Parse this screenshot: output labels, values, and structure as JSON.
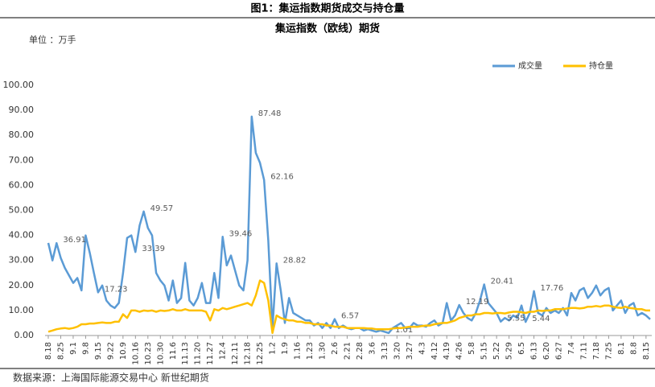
{
  "chart_data": {
    "type": "line",
    "title": "图1：集运指数期货成交与持仓量",
    "subtitle": "集运指数（欧线）期货",
    "unit": "单位 ：万手",
    "source": "数据来源：上海国际能源交易中心 新世纪期货",
    "legend": "top-right",
    "ylim": [
      0,
      100
    ],
    "yticks": [
      {
        "value": 0,
        "label": "0.00"
      },
      {
        "value": 10,
        "label": "10.00"
      },
      {
        "value": 20,
        "label": "20.00"
      },
      {
        "value": 30,
        "label": "30.00"
      },
      {
        "value": 40,
        "label": "40.00"
      },
      {
        "value": 50,
        "label": "50.00"
      },
      {
        "value": 60,
        "label": "60.00"
      },
      {
        "value": 70,
        "label": "70.00"
      },
      {
        "value": 80,
        "label": "80.00"
      },
      {
        "value": 90,
        "label": "90.00"
      },
      {
        "value": 100,
        "label": "100.00"
      }
    ],
    "categories": [
      "8.18",
      null,
      null,
      "8.25",
      null,
      null,
      "9.1",
      null,
      null,
      "9.8",
      null,
      null,
      "9.15",
      null,
      null,
      "9.22",
      null,
      null,
      "10.9",
      null,
      null,
      "10.16",
      null,
      null,
      "10.23",
      null,
      null,
      "10.30",
      null,
      null,
      "11.6",
      null,
      null,
      "11.13",
      null,
      null,
      "11.20",
      null,
      null,
      "11.27",
      null,
      null,
      "12.4",
      null,
      null,
      "12.11",
      null,
      null,
      "12.18",
      null,
      null,
      "12.25",
      null,
      null,
      "1.2",
      null,
      null,
      "1.9",
      null,
      null,
      "1.16",
      null,
      null,
      "1.23",
      null,
      null,
      "1.30",
      null,
      null,
      "2.6",
      null,
      null,
      "2.21",
      null,
      null,
      "2.28",
      null,
      null,
      "3.6",
      null,
      null,
      "3.13",
      null,
      null,
      "3.20",
      null,
      null,
      "3.27",
      null,
      null,
      "4.3",
      null,
      null,
      "4.12",
      null,
      null,
      "4.19",
      null,
      null,
      "4.26",
      null,
      null,
      "5.8",
      null,
      null,
      "5.15",
      null,
      null,
      "5.22",
      null,
      null,
      "5.29",
      null,
      null,
      "6.5",
      null,
      null,
      "6.13",
      null,
      null,
      "6.20",
      null,
      null,
      "6.27",
      null,
      null,
      "7.4",
      null,
      null,
      "7.11",
      null,
      null,
      "7.18",
      null,
      null,
      "7.25",
      null,
      null,
      "8.1",
      null,
      null,
      "8.8",
      null,
      null,
      "8.15",
      null
    ],
    "series": [
      {
        "name": "成交量",
        "color": "#5b9bd5",
        "values": [
          37,
          30,
          36.91,
          31,
          27,
          24,
          21,
          23,
          18,
          40,
          33,
          25,
          17.23,
          20,
          14,
          12,
          11,
          13,
          25,
          39,
          40,
          33.39,
          44,
          49.57,
          43,
          40,
          25,
          22,
          20,
          14,
          22,
          13,
          15,
          29,
          14,
          12,
          15,
          21,
          13,
          13,
          25,
          15,
          39.46,
          28,
          32,
          26,
          20,
          18,
          30,
          87.48,
          73,
          69,
          62.16,
          38,
          3,
          28.82,
          18,
          5,
          15,
          9,
          8,
          7,
          6,
          6,
          4,
          5,
          3,
          5,
          3,
          6.57,
          3,
          4,
          3,
          2.5,
          3,
          3,
          2,
          2.5,
          2,
          1.5,
          2,
          1.5,
          1.01,
          3,
          4,
          5,
          3,
          3,
          5,
          4,
          4,
          3.5,
          5,
          6,
          4,
          5,
          13,
          6,
          8,
          12.19,
          9,
          7,
          6,
          9,
          14,
          20.41,
          13,
          11,
          9,
          5.55,
          7,
          6,
          8,
          7,
          12,
          5.44,
          9,
          17.76,
          9,
          8,
          11,
          9,
          10,
          9,
          11,
          8,
          17,
          14,
          18,
          19,
          15,
          17,
          20,
          16,
          18,
          19,
          10,
          12,
          14,
          9,
          12,
          13,
          8,
          9,
          8,
          6.5
        ],
        "value_labels": [
          null,
          null,
          "36.91",
          null,
          null,
          null,
          null,
          null,
          null,
          null,
          null,
          null,
          "17.23",
          null,
          null,
          null,
          null,
          null,
          null,
          null,
          null,
          "33.39",
          null,
          "49.57",
          null,
          null,
          null,
          null,
          null,
          null,
          null,
          null,
          null,
          null,
          null,
          null,
          null,
          null,
          null,
          null,
          null,
          null,
          "39.46",
          null,
          null,
          null,
          null,
          null,
          null,
          "87.48",
          null,
          null,
          "62.16",
          null,
          null,
          "28.82",
          null,
          null,
          null,
          null,
          null,
          null,
          null,
          null,
          null,
          null,
          null,
          null,
          null,
          "6.57",
          null,
          null,
          null,
          null,
          null,
          null,
          null,
          null,
          null,
          null,
          null,
          null,
          "1.01",
          null,
          null,
          null,
          null,
          null,
          null,
          null,
          null,
          null,
          null,
          null,
          null,
          null,
          null,
          null,
          null,
          "12.19",
          null,
          null,
          null,
          null,
          null,
          "20.41",
          null,
          null,
          null,
          "5.55",
          null,
          null,
          null,
          null,
          null,
          "5.44",
          null,
          "17.76",
          null,
          null,
          null,
          null,
          null,
          null,
          null,
          null,
          null,
          null,
          null,
          null,
          null,
          null,
          null,
          null,
          null,
          null,
          null,
          null,
          null,
          null,
          null,
          null,
          null,
          null,
          null,
          null
        ]
      },
      {
        "name": "持仓量",
        "color": "#ffc000",
        "values": [
          1.5,
          2,
          2.5,
          2.8,
          3,
          2.7,
          3,
          3.5,
          4.5,
          4.5,
          4.8,
          4.8,
          5,
          5.2,
          5,
          5,
          5.5,
          5.5,
          8.5,
          7,
          10,
          10,
          9.5,
          10,
          9.8,
          10,
          9.5,
          10,
          9.8,
          10,
          10.5,
          10,
          10,
          10.5,
          10,
          10,
          10,
          10,
          9.5,
          6,
          10.5,
          10,
          11,
          10.5,
          11,
          11.5,
          12,
          12.5,
          13,
          12,
          16,
          22,
          21,
          14,
          1,
          8,
          7,
          6.5,
          6,
          6,
          5.5,
          5.5,
          5,
          5,
          4.5,
          4.5,
          4.5,
          4,
          4,
          3.5,
          3.5,
          3.5,
          3,
          3,
          3,
          3,
          3,
          2.8,
          2.8,
          2.5,
          2.5,
          2.5,
          2.5,
          2.8,
          3,
          3,
          3.2,
          3.5,
          3.5,
          3.5,
          3.8,
          4,
          4,
          4.5,
          4.8,
          5,
          5,
          5.5,
          6,
          7,
          7.5,
          8,
          8,
          8.5,
          8.5,
          9,
          9,
          8.8,
          9,
          9,
          8.8,
          9.2,
          9.5,
          9.5,
          9.3,
          9,
          9.5,
          9.5,
          10,
          9.8,
          10,
          10,
          10.5,
          10.5,
          10.5,
          10.8,
          11,
          11,
          10.8,
          11,
          11.5,
          11.5,
          11.8,
          11.5,
          12,
          12,
          11.5,
          11.2,
          11,
          11.5,
          11,
          10.8,
          10.5,
          10.5,
          10,
          10
        ]
      }
    ]
  }
}
